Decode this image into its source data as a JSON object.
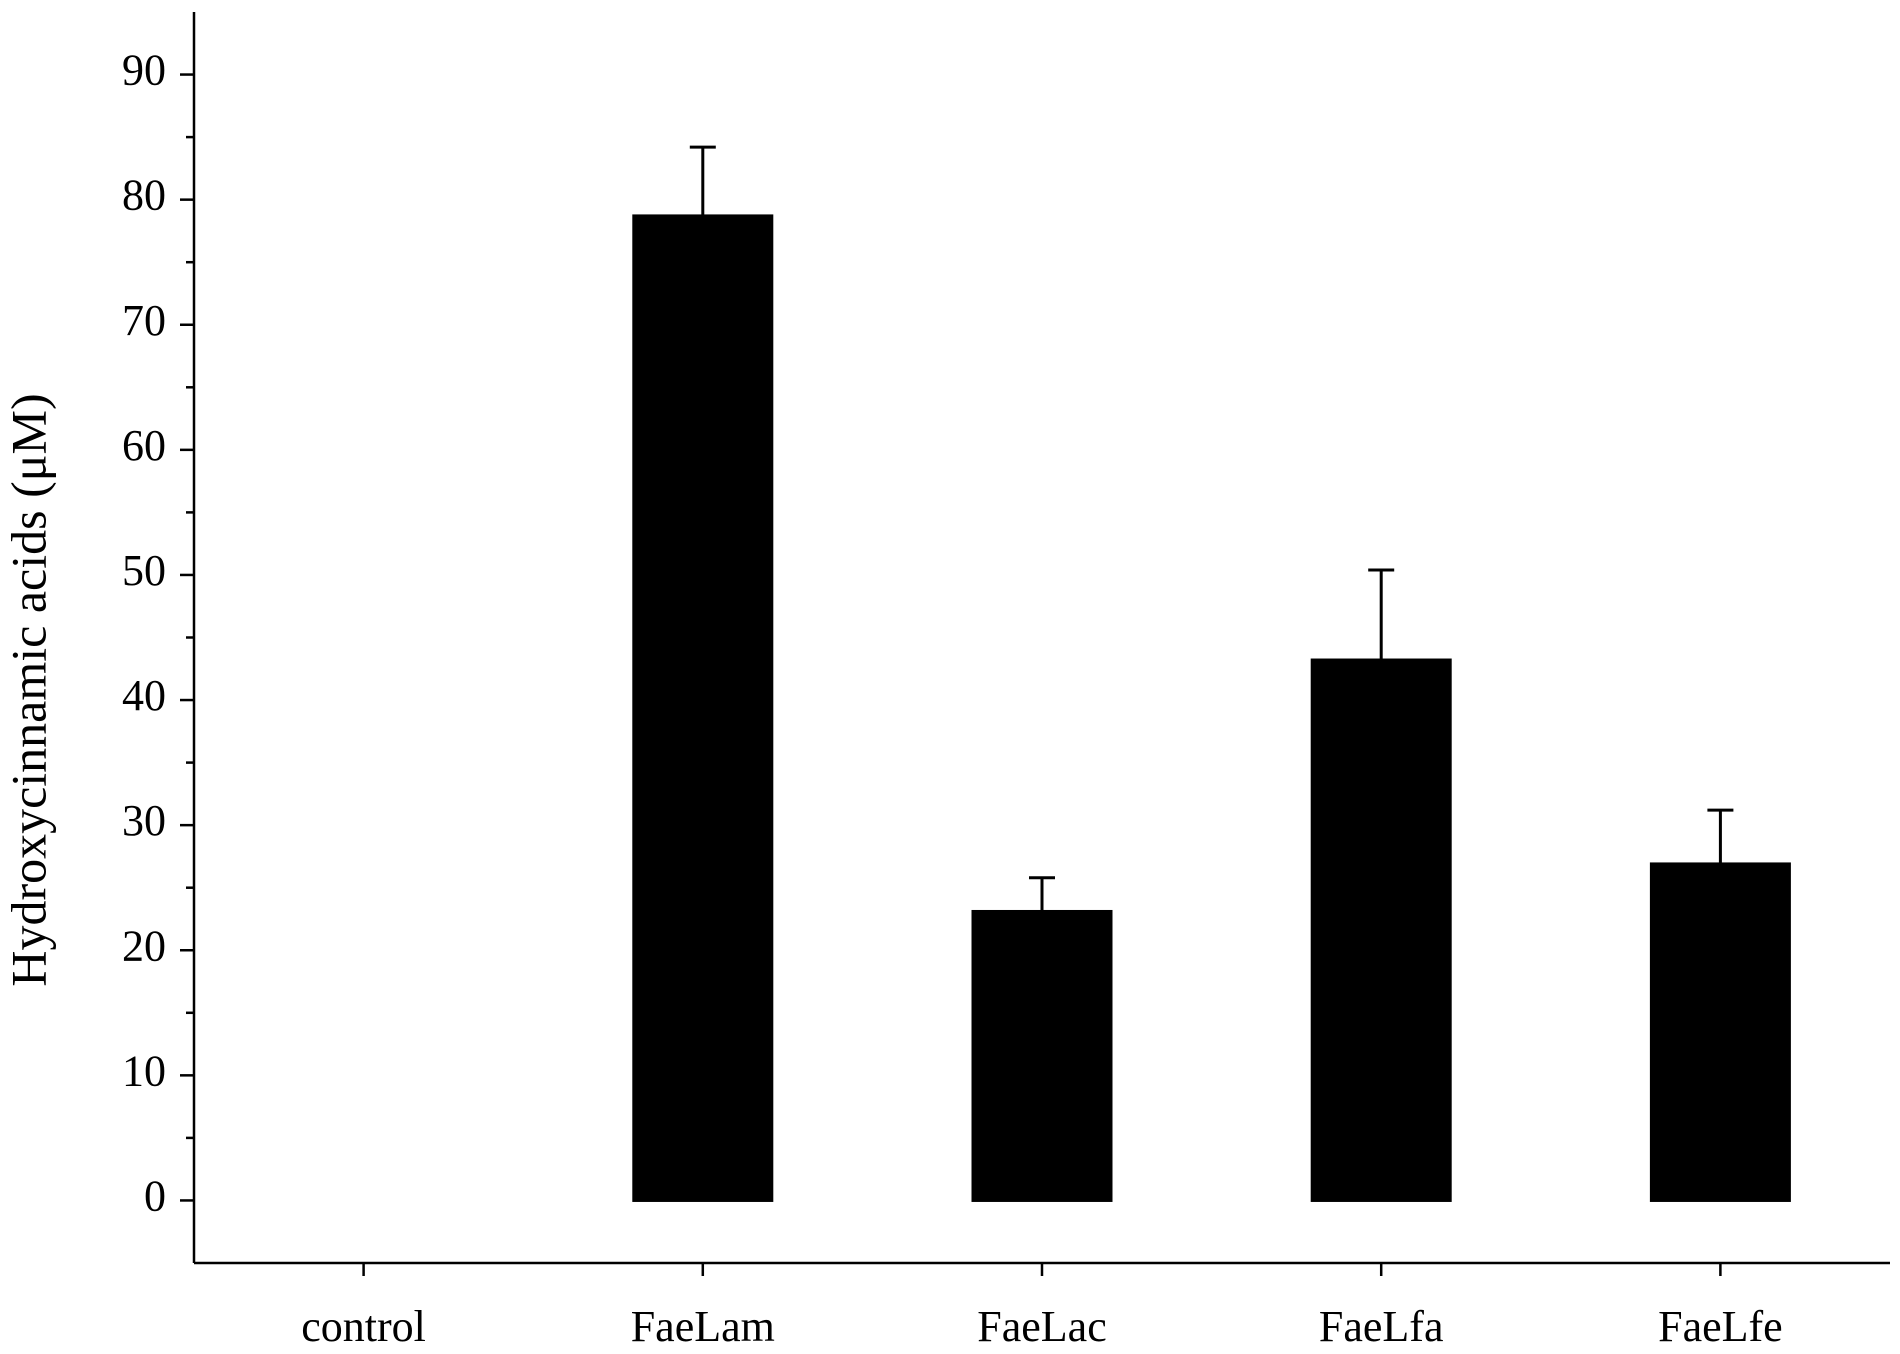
{
  "chart_data": {
    "type": "bar",
    "y_label": "Hydroxycinnamic acids (μM)",
    "categories": [
      "control",
      "FaeLam",
      "FaeLac",
      "FaeLfa",
      "FaeLfe"
    ],
    "values": [
      0,
      78.7,
      23.1,
      43.2,
      26.9
    ],
    "errors": [
      0,
      5.5,
      2.7,
      7.2,
      4.3
    ],
    "color": "#000000",
    "ylim": [
      -5,
      95
    ],
    "yticks": [
      0,
      10,
      20,
      30,
      40,
      50,
      60,
      70,
      80,
      90
    ]
  }
}
